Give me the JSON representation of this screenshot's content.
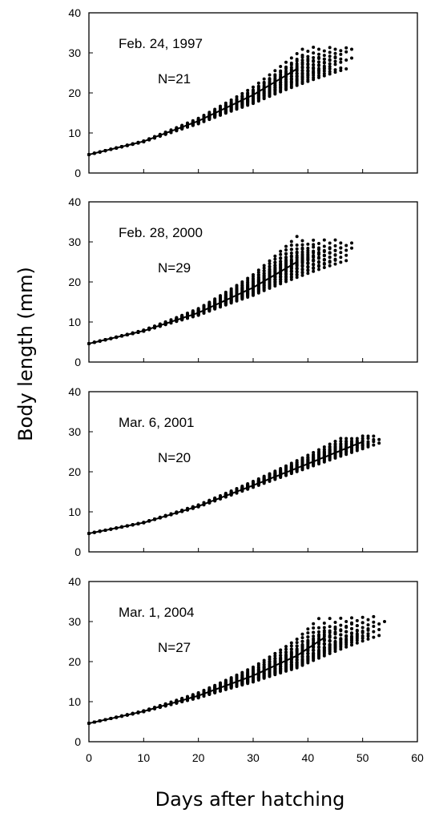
{
  "chart_data": {
    "type": "scatter",
    "xlabel": "Days after hatching",
    "ylabel": "Body length (mm)",
    "xlim": [
      0,
      60
    ],
    "ylim": [
      0,
      40
    ],
    "x_ticks": [
      "0",
      "10",
      "20",
      "30",
      "40",
      "50",
      "60"
    ],
    "y_ticks": [
      "0",
      "10",
      "20",
      "30",
      "40"
    ],
    "grid": false,
    "panels": [
      {
        "date": "Feb. 24, 1997",
        "n_label": "N=21",
        "n": 21,
        "max_day": [
          38,
          48
        ],
        "end_length": [
          26,
          33
        ],
        "mean_curve": [
          [
            0,
            4.6
          ],
          [
            10,
            7.9
          ],
          [
            20,
            13.0
          ],
          [
            30,
            19.5
          ],
          [
            38,
            26.0
          ]
        ]
      },
      {
        "date": "Feb. 28, 2000",
        "n_label": "N=29",
        "n": 29,
        "max_day": [
          36,
          48
        ],
        "end_length": [
          25,
          31
        ],
        "mean_curve": [
          [
            0,
            4.6
          ],
          [
            10,
            7.8
          ],
          [
            20,
            12.3
          ],
          [
            30,
            18.6
          ],
          [
            38,
            25.0
          ]
        ]
      },
      {
        "date": "Mar. 6, 2001",
        "n_label": "N=20",
        "n": 20,
        "max_day": [
          45,
          53
        ],
        "end_length": [
          26,
          29
        ],
        "mean_curve": [
          [
            0,
            4.6
          ],
          [
            10,
            7.3
          ],
          [
            20,
            11.4
          ],
          [
            30,
            16.6
          ],
          [
            40,
            22.0
          ],
          [
            50,
            27.5
          ]
        ]
      },
      {
        "date": "Mar. 1, 2004",
        "n_label": "N=27",
        "n": 27,
        "max_day": [
          40,
          54
        ],
        "end_length": [
          25,
          31.5
        ],
        "mean_curve": [
          [
            0,
            4.6
          ],
          [
            10,
            7.6
          ],
          [
            20,
            11.5
          ],
          [
            30,
            16.5
          ],
          [
            38,
            21.5
          ],
          [
            43,
            26.0
          ]
        ]
      }
    ]
  }
}
